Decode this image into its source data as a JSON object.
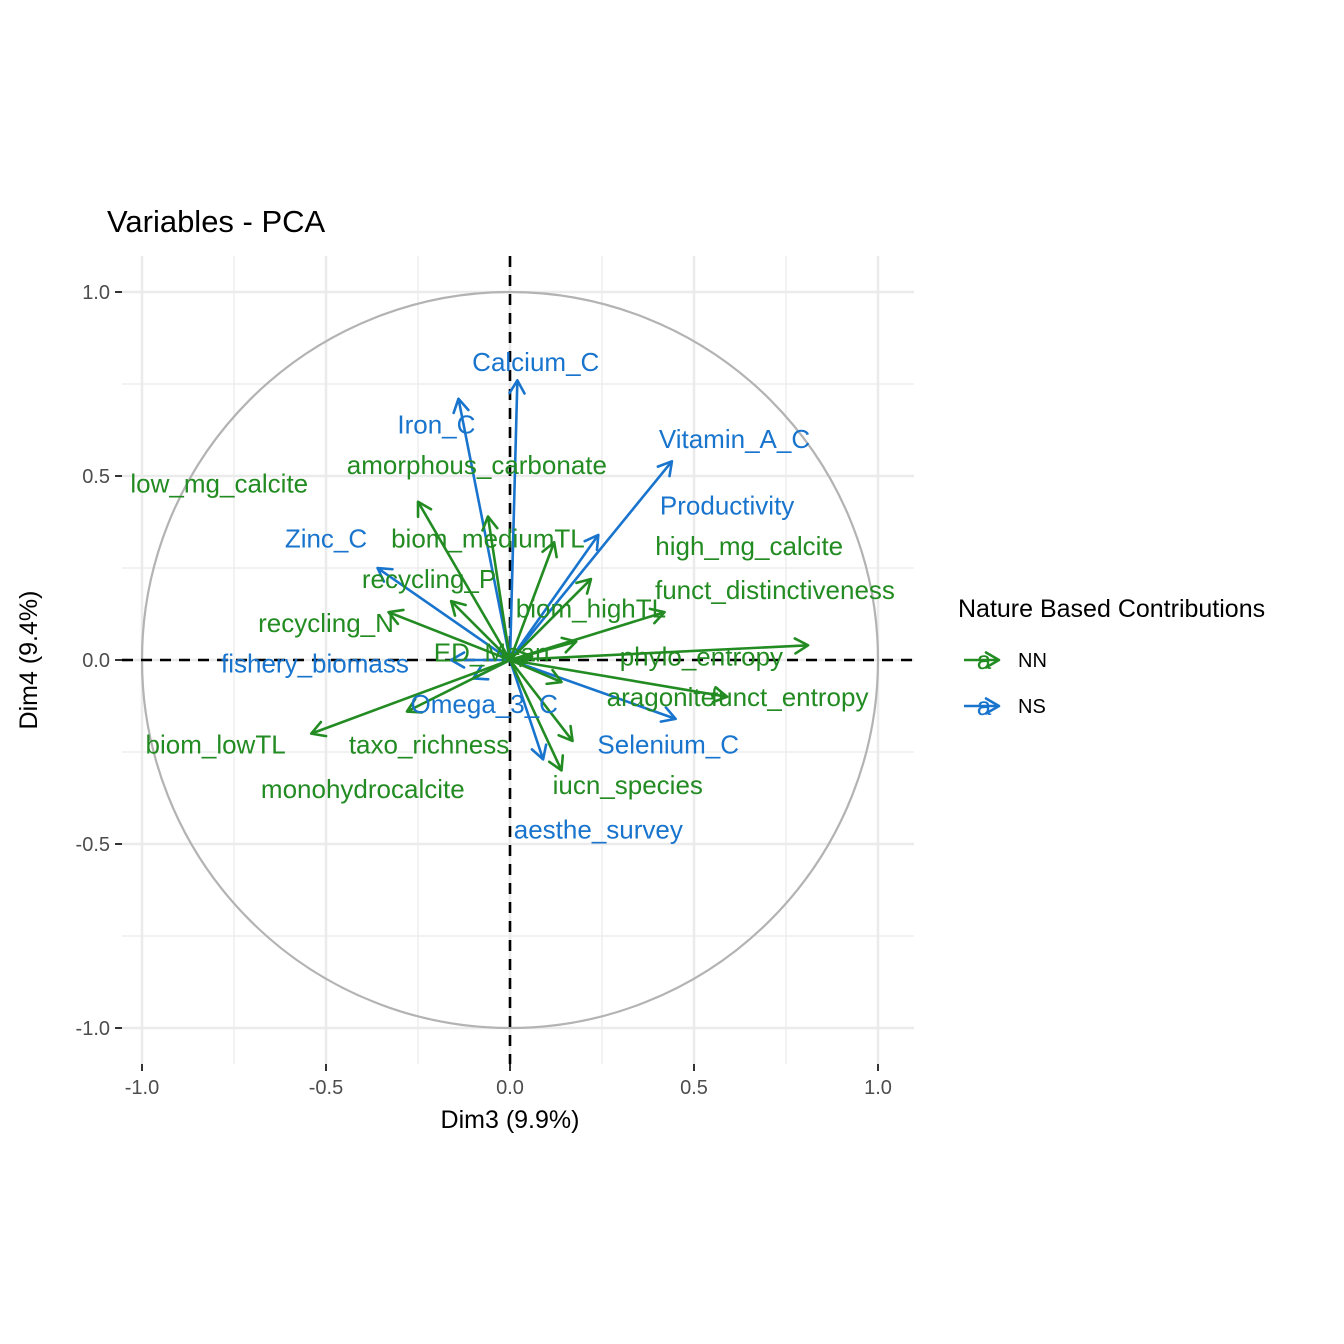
{
  "chart_data": {
    "type": "scatter",
    "subtype": "pca-variable-correlation-circle",
    "title": "Variables - PCA",
    "xlabel": "Dim3 (9.9%)",
    "ylabel": "Dim4 (9.4%)",
    "xlim": [
      -1.0,
      1.0
    ],
    "ylim": [
      -1.0,
      1.0
    ],
    "x_ticks": [
      -1.0,
      -0.5,
      0.0,
      0.5,
      1.0
    ],
    "x_tick_labels": [
      "-1.0",
      "-0.5",
      "0.0",
      "0.5",
      "1.0"
    ],
    "y_ticks": [
      -1.0,
      -0.5,
      0.0,
      0.5,
      1.0
    ],
    "y_tick_labels": [
      "-1.0",
      "-0.5",
      "0.0",
      "0.5",
      "1.0"
    ],
    "grid": true,
    "legend": {
      "title": "Nature Based Contributions",
      "position": "right",
      "entries": [
        {
          "key": "NN",
          "label": "NN",
          "color": "#228B22"
        },
        {
          "key": "NS",
          "label": "NS",
          "color": "#1874CD"
        }
      ]
    },
    "colors": {
      "NN": "#228B22",
      "NS": "#1874CD",
      "circle": "#b3b3b3",
      "grid": "#ebebeb"
    },
    "variables": [
      {
        "name": "Calcium_C",
        "group": "NS",
        "x": 0.02,
        "y": 0.76,
        "lx": 0.07,
        "ly": 0.81
      },
      {
        "name": "Iron_C",
        "group": "NS",
        "x": -0.14,
        "y": 0.71,
        "lx": -0.2,
        "ly": 0.64
      },
      {
        "name": "Vitamin_A_C",
        "group": "NS",
        "x": 0.44,
        "y": 0.54,
        "lx": 0.61,
        "ly": 0.6
      },
      {
        "name": "Productivity",
        "group": "NS",
        "x": 0.24,
        "y": 0.34,
        "lx": 0.59,
        "ly": 0.42
      },
      {
        "name": "Zinc_C",
        "group": "NS",
        "x": -0.36,
        "y": 0.25,
        "lx": -0.5,
        "ly": 0.33
      },
      {
        "name": "fishery_biomass",
        "group": "NS",
        "x": -0.16,
        "y": 0.0,
        "lx": -0.53,
        "ly": -0.01
      },
      {
        "name": "Omega_3_C",
        "group": "NS",
        "x": -0.1,
        "y": -0.05,
        "lx": -0.07,
        "ly": -0.12
      },
      {
        "name": "Selenium_C",
        "group": "NS",
        "x": 0.45,
        "y": -0.16,
        "lx": 0.43,
        "ly": -0.23
      },
      {
        "name": "aesthe_survey",
        "group": "NS",
        "x": 0.09,
        "y": -0.27,
        "lx": 0.24,
        "ly": -0.46
      },
      {
        "name": "amorphous_carbonate",
        "group": "NN",
        "x": -0.06,
        "y": 0.39,
        "lx": -0.09,
        "ly": 0.53
      },
      {
        "name": "low_mg_calcite",
        "group": "NN",
        "x": -0.25,
        "y": 0.43,
        "lx": -0.79,
        "ly": 0.48
      },
      {
        "name": "biom_mediumTL",
        "group": "NN",
        "x": 0.12,
        "y": 0.32,
        "lx": -0.06,
        "ly": 0.33
      },
      {
        "name": "high_mg_calcite",
        "group": "NN",
        "x": 0.22,
        "y": 0.22,
        "lx": 0.65,
        "ly": 0.31
      },
      {
        "name": "recycling_P",
        "group": "NN",
        "x": -0.16,
        "y": 0.16,
        "lx": -0.22,
        "ly": 0.22
      },
      {
        "name": "funct_distinctiveness",
        "group": "NN",
        "x": 0.42,
        "y": 0.13,
        "lx": 0.72,
        "ly": 0.19
      },
      {
        "name": "biom_highTL",
        "group": "NN",
        "x": 0.18,
        "y": 0.05,
        "lx": 0.22,
        "ly": 0.14
      },
      {
        "name": "recycling_N",
        "group": "NN",
        "x": -0.33,
        "y": 0.13,
        "lx": -0.5,
        "ly": 0.1
      },
      {
        "name": "ED_Mean",
        "group": "NN",
        "x": 0.06,
        "y": 0.01,
        "lx": -0.05,
        "ly": 0.02
      },
      {
        "name": "phylo_entropy",
        "group": "NN",
        "x": 0.81,
        "y": 0.04,
        "lx": 0.52,
        "ly": 0.01
      },
      {
        "name": "funct_entropy",
        "group": "NN",
        "x": 0.59,
        "y": -0.1,
        "lx": 0.76,
        "ly": -0.1
      },
      {
        "name": "aragonite",
        "group": "NN",
        "x": 0.14,
        "y": -0.06,
        "lx": 0.41,
        "ly": -0.1
      },
      {
        "name": "biom_lowTL",
        "group": "NN",
        "x": -0.54,
        "y": -0.2,
        "lx": -0.8,
        "ly": -0.23
      },
      {
        "name": "taxo_richness",
        "group": "NN",
        "x": 0.17,
        "y": -0.22,
        "lx": -0.22,
        "ly": -0.23
      },
      {
        "name": "monohydrocalcite",
        "group": "NN",
        "x": -0.28,
        "y": -0.14,
        "lx": -0.4,
        "ly": -0.35
      },
      {
        "name": "iucn_species",
        "group": "NN",
        "x": 0.14,
        "y": -0.3,
        "lx": 0.32,
        "ly": -0.34
      }
    ]
  }
}
